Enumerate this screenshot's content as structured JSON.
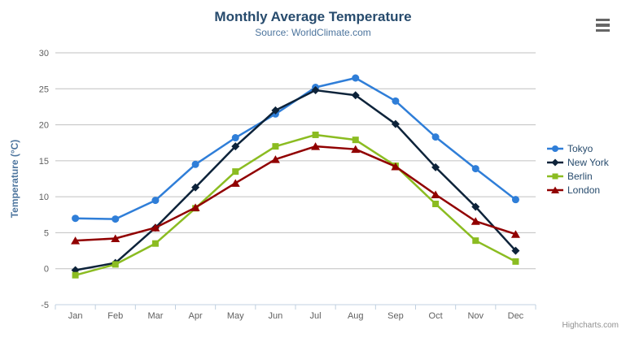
{
  "chart": {
    "credits_label": "Highcharts.com",
    "menu_icon": "hamburger-menu-icon"
  },
  "palette": {
    "background": "#ffffff",
    "title": "#274b6d",
    "subtitle": "#4d759e",
    "axis_title": "#4d759e",
    "axis_label": "#606060",
    "axis_line": "#c0d0e0",
    "gridline": "#c0c0c0",
    "legend_text": "#274b6d",
    "credits": "#909090",
    "menu_icon_color": "#666666"
  },
  "chart_data": {
    "type": "line",
    "title": "Monthly Average Temperature",
    "subtitle": "Source: WorldClimate.com",
    "xlabel": "",
    "ylabel": "Temperature (°C)",
    "ylim": [
      -5,
      30
    ],
    "yticks": [
      -5,
      0,
      5,
      10,
      15,
      20,
      25,
      30
    ],
    "grid": true,
    "legend_position": "right-middle",
    "categories": [
      "Jan",
      "Feb",
      "Mar",
      "Apr",
      "May",
      "Jun",
      "Jul",
      "Aug",
      "Sep",
      "Oct",
      "Nov",
      "Dec"
    ],
    "series": [
      {
        "name": "Tokyo",
        "color": "#2f7ed8",
        "marker": "circle",
        "values": [
          7.0,
          6.9,
          9.5,
          14.5,
          18.2,
          21.5,
          25.2,
          26.5,
          23.3,
          18.3,
          13.9,
          9.6
        ]
      },
      {
        "name": "New York",
        "color": "#0d233a",
        "marker": "diamond",
        "values": [
          -0.2,
          0.8,
          5.7,
          11.3,
          17.0,
          22.0,
          24.8,
          24.1,
          20.1,
          14.1,
          8.6,
          2.5
        ]
      },
      {
        "name": "Berlin",
        "color": "#8bbc21",
        "marker": "square",
        "values": [
          -0.9,
          0.6,
          3.5,
          8.4,
          13.5,
          17.0,
          18.6,
          17.9,
          14.3,
          9.0,
          3.9,
          1.0
        ]
      },
      {
        "name": "London",
        "color": "#910000",
        "marker": "triangle",
        "values": [
          3.9,
          4.2,
          5.7,
          8.5,
          11.9,
          15.2,
          17.0,
          16.6,
          14.2,
          10.3,
          6.6,
          4.8
        ]
      }
    ]
  }
}
